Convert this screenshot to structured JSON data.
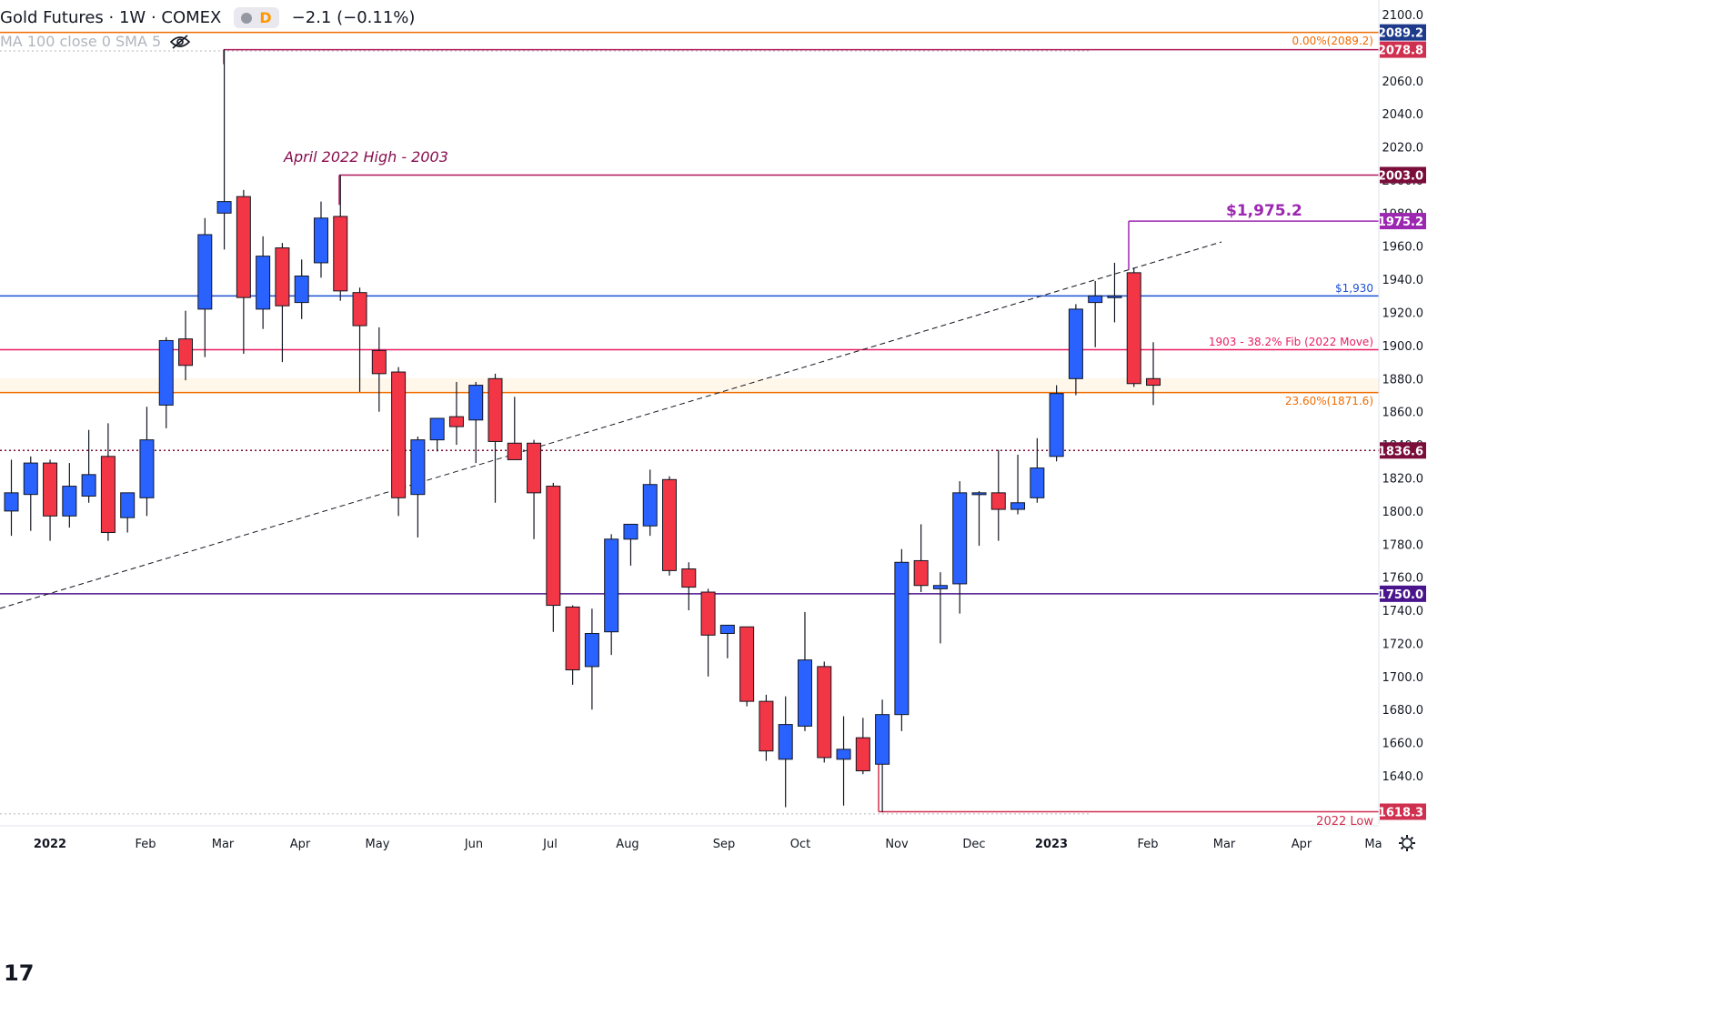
{
  "header": {
    "symbol": "Gold Futures · 1W · COMEX",
    "change": "−2.1 (−0.11%)",
    "badge": "D",
    "indicator": "MA 100 close 0 SMA 5"
  },
  "logo_text": "17",
  "annotations": {
    "april_high": "April 2022 High - 2003",
    "peak_label": "$1,975.2",
    "level_1930": "$1,930",
    "fib_382": "1903 - 38.2% Fib (2022 Move)",
    "fib_236": "23.60%(1871.6)",
    "fib_0": "0.00%(2089.2)"
  },
  "price_tags": [
    {
      "text": "2089.2",
      "value": 2089.2,
      "color": "#1e3a8a"
    },
    {
      "text": "2078.8",
      "value": 2078.8,
      "color": "#d0304f"
    },
    {
      "text": "2003.0",
      "value": 2003.0,
      "color": "#7a0d3a"
    },
    {
      "text": "1975.2",
      "value": 1975.2,
      "color": "#9c27b0"
    },
    {
      "text": "1836.6",
      "value": 1836.6,
      "color": "#7a0d3a"
    },
    {
      "text": "1750.0",
      "value": 1750.0,
      "color": "#4a148c"
    },
    {
      "text": "1618.3",
      "value": 1618.3,
      "color": "#d0304f"
    },
    {
      "text": "2022 Low",
      "value": 1608.5,
      "color": "#d0304f",
      "text_only": true
    }
  ],
  "chart_data": {
    "type": "candlestick",
    "title": "Gold Futures · 1W · COMEX",
    "ylim": [
      1610,
      2106
    ],
    "y_ticks": [
      1640,
      1660,
      1680,
      1700,
      1720,
      1740,
      1760,
      1780,
      1800,
      1820,
      1840,
      1860,
      1880,
      1900,
      1920,
      1940,
      1960,
      1980,
      2000,
      2020,
      2040,
      2060,
      2080,
      2100
    ],
    "x_ticks": [
      "2022",
      "Feb",
      "Mar",
      "Apr",
      "May",
      "Jun",
      "Jul",
      "Aug",
      "Sep",
      "Oct",
      "Nov",
      "Dec",
      "2023",
      "Feb",
      "Mar",
      "Apr",
      "Ma"
    ],
    "grid": false,
    "candles": [
      {
        "o": 1800,
        "h": 1831,
        "l": 1785,
        "c": 1811
      },
      {
        "o": 1810,
        "h": 1833,
        "l": 1788,
        "c": 1829
      },
      {
        "o": 1829,
        "h": 1831,
        "l": 1782,
        "c": 1797
      },
      {
        "o": 1797,
        "h": 1829,
        "l": 1790,
        "c": 1815
      },
      {
        "o": 1809,
        "h": 1849,
        "l": 1805,
        "c": 1822
      },
      {
        "o": 1833,
        "h": 1853,
        "l": 1782,
        "c": 1787
      },
      {
        "o": 1796,
        "h": 1810,
        "l": 1787,
        "c": 1811
      },
      {
        "o": 1808,
        "h": 1863,
        "l": 1797,
        "c": 1843
      },
      {
        "o": 1864,
        "h": 1905,
        "l": 1850,
        "c": 1903
      },
      {
        "o": 1904,
        "h": 1921,
        "l": 1879,
        "c": 1888
      },
      {
        "o": 1922,
        "h": 1977,
        "l": 1893,
        "c": 1967
      },
      {
        "o": 1980,
        "h": 2079,
        "l": 1958,
        "c": 1987
      },
      {
        "o": 1990,
        "h": 1994,
        "l": 1895,
        "c": 1929
      },
      {
        "o": 1922,
        "h": 1966,
        "l": 1910,
        "c": 1954
      },
      {
        "o": 1959,
        "h": 1962,
        "l": 1890,
        "c": 1924
      },
      {
        "o": 1926,
        "h": 1952,
        "l": 1916,
        "c": 1942
      },
      {
        "o": 1950,
        "h": 1987,
        "l": 1941,
        "c": 1977
      },
      {
        "o": 1978,
        "h": 2003,
        "l": 1927,
        "c": 1933
      },
      {
        "o": 1932,
        "h": 1935,
        "l": 1872,
        "c": 1912
      },
      {
        "o": 1897,
        "h": 1911,
        "l": 1860,
        "c": 1883
      },
      {
        "o": 1884,
        "h": 1887,
        "l": 1797,
        "c": 1808
      },
      {
        "o": 1810,
        "h": 1845,
        "l": 1784,
        "c": 1843
      },
      {
        "o": 1843,
        "h": 1856,
        "l": 1836,
        "c": 1856
      },
      {
        "o": 1857,
        "h": 1878,
        "l": 1840,
        "c": 1851
      },
      {
        "o": 1855,
        "h": 1878,
        "l": 1829,
        "c": 1876
      },
      {
        "o": 1880,
        "h": 1883,
        "l": 1805,
        "c": 1842
      },
      {
        "o": 1841,
        "h": 1869,
        "l": 1831,
        "c": 1831
      },
      {
        "o": 1841,
        "h": 1843,
        "l": 1783,
        "c": 1811
      },
      {
        "o": 1815,
        "h": 1817,
        "l": 1727,
        "c": 1743
      },
      {
        "o": 1742,
        "h": 1743,
        "l": 1695,
        "c": 1704
      },
      {
        "o": 1706,
        "h": 1741,
        "l": 1680,
        "c": 1726
      },
      {
        "o": 1727,
        "h": 1786,
        "l": 1713,
        "c": 1783
      },
      {
        "o": 1783,
        "h": 1790,
        "l": 1767,
        "c": 1792
      },
      {
        "o": 1791,
        "h": 1825,
        "l": 1785,
        "c": 1816
      },
      {
        "o": 1819,
        "h": 1821,
        "l": 1761,
        "c": 1764
      },
      {
        "o": 1765,
        "h": 1769,
        "l": 1740,
        "c": 1754
      },
      {
        "o": 1751,
        "h": 1753,
        "l": 1700,
        "c": 1725
      },
      {
        "o": 1726,
        "h": 1730,
        "l": 1711,
        "c": 1731
      },
      {
        "o": 1730,
        "h": 1730,
        "l": 1682,
        "c": 1685
      },
      {
        "o": 1685,
        "h": 1689,
        "l": 1649,
        "c": 1655
      },
      {
        "o": 1650,
        "h": 1688,
        "l": 1621,
        "c": 1671
      },
      {
        "o": 1670,
        "h": 1739,
        "l": 1667,
        "c": 1710
      },
      {
        "o": 1706,
        "h": 1709,
        "l": 1648,
        "c": 1651
      },
      {
        "o": 1650,
        "h": 1676,
        "l": 1622,
        "c": 1656
      },
      {
        "o": 1663,
        "h": 1675,
        "l": 1641,
        "c": 1643
      },
      {
        "o": 1647,
        "h": 1686,
        "l": 1618,
        "c": 1677
      },
      {
        "o": 1677,
        "h": 1777,
        "l": 1667,
        "c": 1769
      },
      {
        "o": 1770,
        "h": 1792,
        "l": 1751,
        "c": 1755
      },
      {
        "o": 1753,
        "h": 1763,
        "l": 1720,
        "c": 1755
      },
      {
        "o": 1756,
        "h": 1818,
        "l": 1738,
        "c": 1811
      },
      {
        "o": 1811,
        "h": 1812,
        "l": 1779,
        "c": 1811
      },
      {
        "o": 1811,
        "h": 1837,
        "l": 1782,
        "c": 1801
      },
      {
        "o": 1801,
        "h": 1834,
        "l": 1798,
        "c": 1805
      },
      {
        "o": 1808,
        "h": 1844,
        "l": 1805,
        "c": 1826
      },
      {
        "o": 1833,
        "h": 1876,
        "l": 1830,
        "c": 1871
      },
      {
        "o": 1880,
        "h": 1925,
        "l": 1870,
        "c": 1922
      },
      {
        "o": 1926,
        "h": 1939,
        "l": 1899,
        "c": 1930
      },
      {
        "o": 1929,
        "h": 1950,
        "l": 1914,
        "c": 1930
      },
      {
        "o": 1944,
        "h": 1947,
        "l": 1875,
        "c": 1877
      },
      {
        "o": 1880,
        "h": 1902,
        "l": 1864,
        "c": 1876
      }
    ]
  }
}
